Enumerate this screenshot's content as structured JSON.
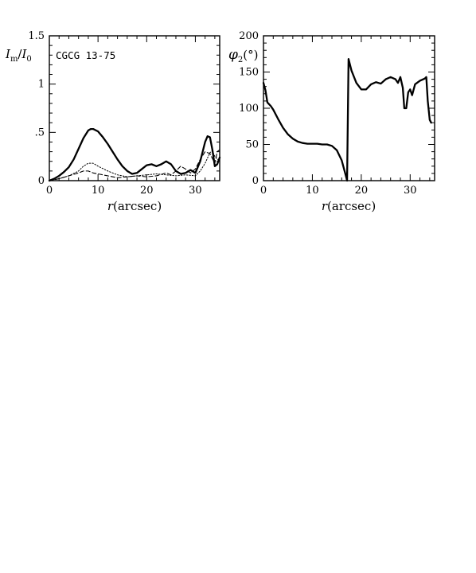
{
  "chart_data": [
    {
      "type": "line",
      "annotation": "CGCG 13-75",
      "xlabel_italic": "r",
      "xlabel_rest": "(arcsec)",
      "ylabel_I": "I",
      "ylabel_m": "m",
      "ylabel_slash": "/",
      "ylabel_I0": "I",
      "ylabel_0": "0",
      "xlim": [
        0,
        35
      ],
      "ylim": [
        0,
        1.5
      ],
      "xticks": [
        {
          "value": 0,
          "label": "0"
        },
        {
          "value": 10,
          "label": "10"
        },
        {
          "value": 20,
          "label": "20"
        },
        {
          "value": 30,
          "label": "30"
        }
      ],
      "yticks": [
        {
          "value": 0,
          "label": "0"
        },
        {
          "value": 0.5,
          "label": ".5"
        },
        {
          "value": 1.0,
          "label": "1"
        },
        {
          "value": 1.5,
          "label": "1.5"
        }
      ],
      "grid": false,
      "series": [
        {
          "style": "solid",
          "points": [
            [
              0,
              0
            ],
            [
              1,
              0.02
            ],
            [
              2,
              0.05
            ],
            [
              3,
              0.09
            ],
            [
              4,
              0.14
            ],
            [
              5,
              0.22
            ],
            [
              6,
              0.33
            ],
            [
              7,
              0.44
            ],
            [
              8,
              0.52
            ],
            [
              8.5,
              0.535
            ],
            [
              9,
              0.535
            ],
            [
              10,
              0.51
            ],
            [
              11,
              0.45
            ],
            [
              12,
              0.38
            ],
            [
              13,
              0.3
            ],
            [
              14,
              0.22
            ],
            [
              15,
              0.15
            ],
            [
              16,
              0.1
            ],
            [
              17,
              0.07
            ],
            [
              18,
              0.08
            ],
            [
              19,
              0.12
            ],
            [
              20,
              0.16
            ],
            [
              21,
              0.17
            ],
            [
              22,
              0.15
            ],
            [
              23,
              0.17
            ],
            [
              24,
              0.2
            ],
            [
              25,
              0.17
            ],
            [
              26,
              0.1
            ],
            [
              27,
              0.07
            ],
            [
              28,
              0.08
            ],
            [
              29,
              0.11
            ],
            [
              30,
              0.08
            ],
            [
              31,
              0.2
            ],
            [
              32,
              0.4
            ],
            [
              32.5,
              0.46
            ],
            [
              33,
              0.45
            ],
            [
              33.5,
              0.32
            ],
            [
              34,
              0.15
            ],
            [
              34.5,
              0.17
            ],
            [
              35,
              0.24
            ]
          ]
        },
        {
          "style": "dotted",
          "points": [
            [
              0,
              0
            ],
            [
              2,
              0.02
            ],
            [
              4,
              0.05
            ],
            [
              6,
              0.1
            ],
            [
              7,
              0.15
            ],
            [
              8,
              0.18
            ],
            [
              9,
              0.18
            ],
            [
              10,
              0.15
            ],
            [
              12,
              0.1
            ],
            [
              14,
              0.06
            ],
            [
              16,
              0.04
            ],
            [
              18,
              0.05
            ],
            [
              20,
              0.06
            ],
            [
              22,
              0.07
            ],
            [
              24,
              0.06
            ],
            [
              26,
              0.05
            ],
            [
              28,
              0.06
            ],
            [
              30,
              0.05
            ],
            [
              31,
              0.1
            ],
            [
              32,
              0.18
            ],
            [
              33,
              0.29
            ],
            [
              33.5,
              0.31
            ],
            [
              34,
              0.25
            ],
            [
              35,
              0.2
            ]
          ]
        },
        {
          "style": "dashed",
          "points": [
            [
              0,
              0
            ],
            [
              2,
              0.02
            ],
            [
              4,
              0.05
            ],
            [
              6,
              0.08
            ],
            [
              7,
              0.1
            ],
            [
              8,
              0.1
            ],
            [
              9,
              0.08
            ],
            [
              10,
              0.07
            ],
            [
              12,
              0.05
            ],
            [
              14,
              0.03
            ],
            [
              16,
              0.04
            ],
            [
              18,
              0.05
            ],
            [
              20,
              0.04
            ],
            [
              22,
              0.05
            ],
            [
              24,
              0.08
            ],
            [
              25,
              0.06
            ],
            [
              26,
              0.1
            ],
            [
              27,
              0.15
            ],
            [
              28,
              0.12
            ],
            [
              29,
              0.08
            ],
            [
              30,
              0.12
            ],
            [
              31,
              0.22
            ],
            [
              32,
              0.3
            ],
            [
              33,
              0.28
            ],
            [
              34,
              0.18
            ],
            [
              34.5,
              0.3
            ],
            [
              35,
              0.32
            ]
          ]
        }
      ]
    },
    {
      "type": "line",
      "xlabel_italic": "r",
      "xlabel_rest": "(arcsec)",
      "ylabel_phi": "φ",
      "ylabel_2": "2",
      "ylabel_deg": "(°)",
      "xlim": [
        0,
        35
      ],
      "ylim": [
        0,
        200
      ],
      "xticks": [
        {
          "value": 0,
          "label": "0"
        },
        {
          "value": 10,
          "label": "10"
        },
        {
          "value": 20,
          "label": "20"
        },
        {
          "value": 30,
          "label": "30"
        }
      ],
      "yticks": [
        {
          "value": 0,
          "label": "0"
        },
        {
          "value": 50,
          "label": "50"
        },
        {
          "value": 100,
          "label": "100"
        },
        {
          "value": 150,
          "label": "150"
        },
        {
          "value": 200,
          "label": "200"
        }
      ],
      "grid": false,
      "series": [
        {
          "style": "solid",
          "points": [
            [
              0,
              135
            ],
            [
              0.4,
              125
            ],
            [
              0.8,
              108
            ],
            [
              1.5,
              103
            ],
            [
              2,
              98
            ],
            [
              3,
              85
            ],
            [
              4,
              73
            ],
            [
              5,
              64
            ],
            [
              6,
              58
            ],
            [
              7,
              54
            ],
            [
              8,
              52
            ],
            [
              9,
              51
            ],
            [
              10,
              51
            ],
            [
              11,
              51
            ],
            [
              12,
              50
            ],
            [
              13,
              50
            ],
            [
              14,
              48
            ],
            [
              15,
              42
            ],
            [
              16,
              28
            ],
            [
              16.8,
              8
            ],
            [
              17.1,
              0
            ],
            [
              17.4,
              168
            ],
            [
              18,
              152
            ],
            [
              19,
              135
            ],
            [
              20,
              126
            ],
            [
              21,
              126
            ],
            [
              22,
              133
            ],
            [
              23,
              136
            ],
            [
              24,
              134
            ],
            [
              25,
              140
            ],
            [
              26,
              143
            ],
            [
              27,
              140
            ],
            [
              27.5,
              135
            ],
            [
              28,
              143
            ],
            [
              28.5,
              128
            ],
            [
              28.8,
              100
            ],
            [
              29.2,
              100
            ],
            [
              29.6,
              122
            ],
            [
              30,
              126
            ],
            [
              30.4,
              118
            ],
            [
              31,
              133
            ],
            [
              32,
              138
            ],
            [
              33,
              141
            ],
            [
              33.3,
              143
            ],
            [
              33.6,
              110
            ],
            [
              34,
              84
            ],
            [
              34.3,
              80
            ]
          ]
        }
      ]
    }
  ]
}
